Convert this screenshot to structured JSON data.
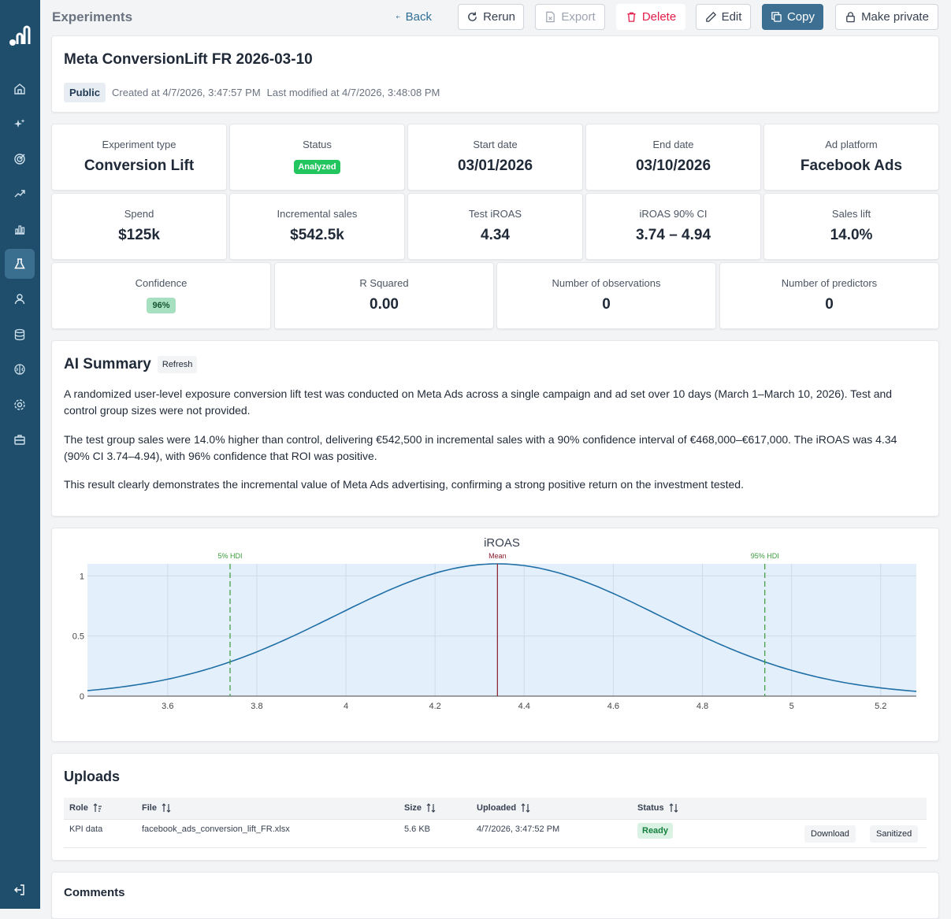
{
  "header": {
    "breadcrumb": "Experiments",
    "actions": {
      "back": "Back",
      "rerun": "Rerun",
      "export": "Export",
      "delete": "Delete",
      "edit": "Edit",
      "copy": "Copy",
      "make_private": "Make private"
    }
  },
  "experiment": {
    "title": "Meta ConversionLift FR 2026-03-10",
    "visibility": "Public",
    "created": "Created at 4/7/2026, 3:47:57 PM",
    "modified": "Last modified at 4/7/2026, 3:48:08 PM"
  },
  "stats_row1": [
    {
      "label": "Experiment type",
      "value": "Conversion Lift"
    },
    {
      "label": "Status",
      "value": "Analyzed"
    },
    {
      "label": "Start date",
      "value": "03/01/2026"
    },
    {
      "label": "End date",
      "value": "03/10/2026"
    },
    {
      "label": "Ad platform",
      "value": "Facebook Ads"
    }
  ],
  "stats_row2": [
    {
      "label": "Spend",
      "value": "$125k"
    },
    {
      "label": "Incremental sales",
      "value": "$542.5k"
    },
    {
      "label": "Test iROAS",
      "value": "4.34"
    },
    {
      "label": "iROAS 90% CI",
      "value": "3.74 – 4.94"
    },
    {
      "label": "Sales lift",
      "value": "14.0%"
    }
  ],
  "stats_row3": [
    {
      "label": "Confidence",
      "value": "96%"
    },
    {
      "label": "R Squared",
      "value": "0.00"
    },
    {
      "label": "Number of observations",
      "value": "0"
    },
    {
      "label": "Number of predictors",
      "value": "0"
    }
  ],
  "ai_summary": {
    "title": "AI Summary",
    "refresh": "Refresh",
    "paragraphs": [
      "A randomized user-level exposure conversion lift test was conducted on Meta Ads across a single campaign and ad set over 10 days (March 1–March 10, 2026). Test and control group sizes were not provided.",
      "The test group sales were 14.0% higher than control, delivering €542,500 in incremental sales with a 90% confidence interval of €468,000–€617,000. The iROAS was 4.34 (90% CI 3.74–4.94), with 96% confidence that ROI was positive.",
      "This result clearly demonstrates the incremental value of Meta Ads advertising, confirming a strong positive return on the investment tested."
    ]
  },
  "chart_data": {
    "type": "line",
    "title": "iROAS",
    "xlim": [
      3.42,
      5.28
    ],
    "ylim": [
      0,
      1.1
    ],
    "xticks": [
      3.6,
      3.8,
      4,
      4.2,
      4.4,
      4.6,
      4.8,
      5,
      5.2
    ],
    "yticks": [
      0,
      0.5,
      1
    ],
    "xtick_labels": [
      "3.6",
      "3.8",
      "4",
      "4.2",
      "4.4",
      "4.6",
      "4.8",
      "5",
      "5.2"
    ],
    "ytick_labels": [
      "0",
      "0.5",
      "1"
    ],
    "distribution": {
      "mean": 4.34,
      "sd": 0.365,
      "peak": 1.1
    },
    "markers": [
      {
        "label": "5% HDI",
        "x": 3.74,
        "color": "#3a9a3a",
        "style": "dashed"
      },
      {
        "label": "Mean",
        "x": 4.34,
        "color": "#8b1c2c",
        "style": "solid"
      },
      {
        "label": "95% HDI",
        "x": 4.94,
        "color": "#3a9a3a",
        "style": "dashed"
      }
    ],
    "line_color": "#1f6fa6",
    "plot_bg": "#e3effb",
    "grid": true
  },
  "uploads": {
    "title": "Uploads",
    "columns": [
      "Role",
      "File",
      "Size",
      "Uploaded",
      "Status"
    ],
    "rows": [
      {
        "role": "KPI data",
        "file": "facebook_ads_conversion_lift_FR.xlsx",
        "size": "5.6 KB",
        "uploaded": "4/7/2026, 3:47:52 PM",
        "status": "Ready",
        "download": "Download",
        "sanitized": "Sanitized"
      }
    ]
  },
  "comments": {
    "title": "Comments"
  }
}
